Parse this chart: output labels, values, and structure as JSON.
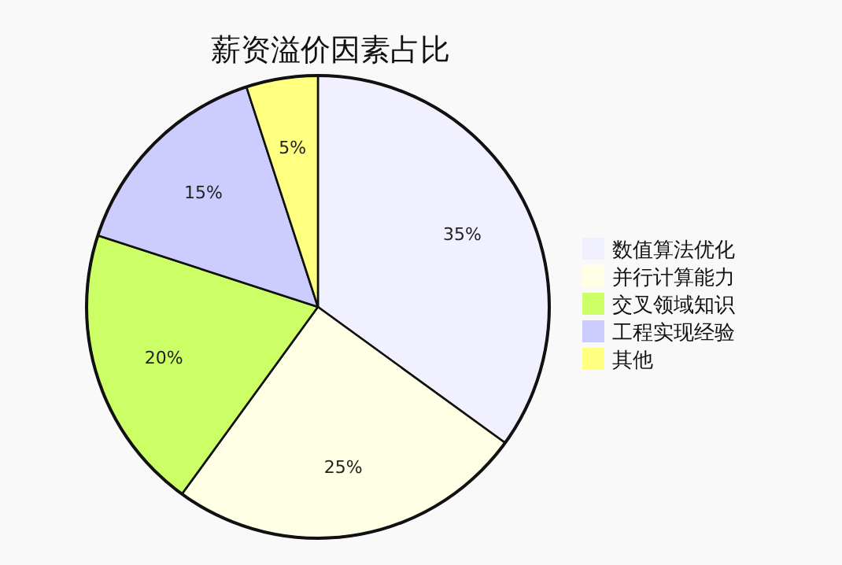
{
  "chart_data": {
    "type": "pie",
    "title": "薪资溢价因素占比",
    "categories": [
      "数值算法优化",
      "并行计算能力",
      "交叉领域知识",
      "工程实现经验",
      "其他"
    ],
    "values": [
      35,
      25,
      20,
      15,
      5
    ],
    "colors": [
      "#f0f0ff",
      "#ffffe6",
      "#ccff66",
      "#ccccff",
      "#ffff80"
    ],
    "value_labels": [
      "35%",
      "25%",
      "20%",
      "15%",
      "5%"
    ],
    "legend": "right"
  }
}
